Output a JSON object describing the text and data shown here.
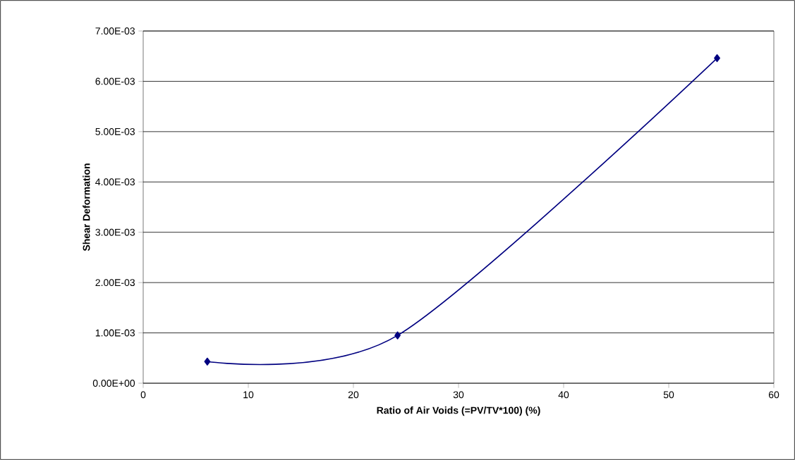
{
  "chart_data": {
    "type": "line",
    "xlabel": "Ratio of Air Voids (=PV/TV*100) (%)",
    "ylabel": "Shear Deformation",
    "x": [
      6.1,
      24.2,
      54.6
    ],
    "series": [
      {
        "color": "#000080",
        "values": [
          0.00043,
          0.00095,
          0.00646
        ]
      }
    ],
    "marker": "diamond",
    "line_style": "solid",
    "grid": "y",
    "xlim": [
      0,
      60
    ],
    "xticks": [
      0,
      10,
      20,
      30,
      40,
      50,
      60
    ],
    "ylim": [
      0,
      0.007
    ],
    "yticks": [
      {
        "value": 0,
        "label": "0.00E+00"
      },
      {
        "value": 0.001,
        "label": "1.00E-03"
      },
      {
        "value": 0.002,
        "label": "2.00E-03"
      },
      {
        "value": 0.003,
        "label": "3.00E-03"
      },
      {
        "value": 0.004,
        "label": "4.00E-03"
      },
      {
        "value": 0.005,
        "label": "5.00E-03"
      },
      {
        "value": 0.006,
        "label": "6.00E-03"
      },
      {
        "value": 0.007,
        "label": "7.00E-03"
      }
    ]
  }
}
